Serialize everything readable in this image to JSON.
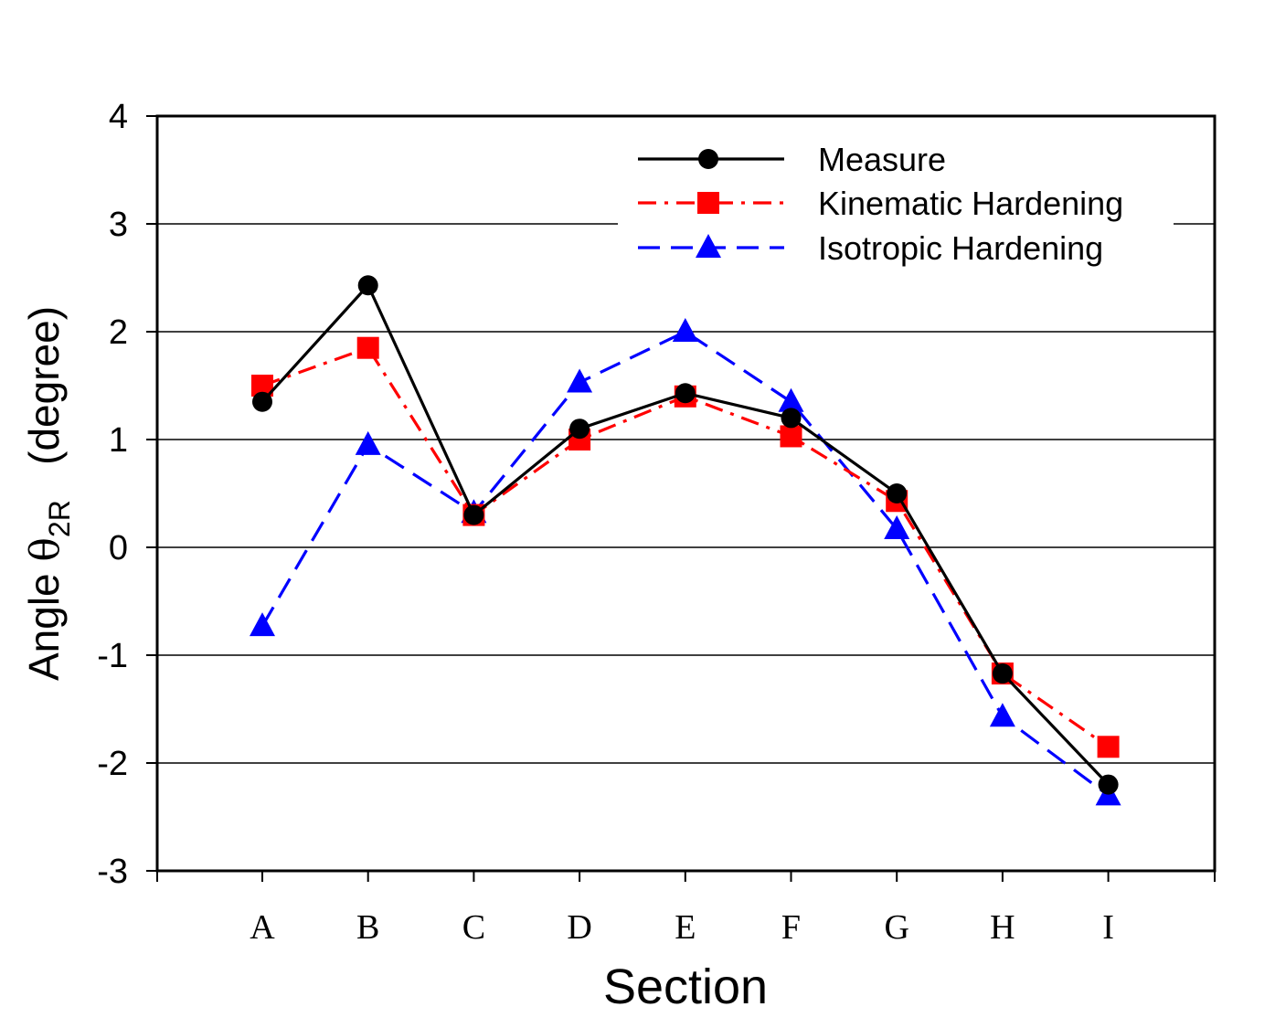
{
  "chart_data": {
    "type": "line",
    "xlabel": "Section",
    "ylabel": {
      "prefix": "Angle ",
      "symbol": "θ",
      "subscript": "2R",
      "unit": "(degree)"
    },
    "categories": [
      "A",
      "B",
      "C",
      "D",
      "E",
      "F",
      "G",
      "H",
      "I"
    ],
    "ylim": [
      -3,
      4
    ],
    "yticks": [
      "4",
      "3",
      "2",
      "1",
      "0",
      "-1",
      "-2",
      "-3"
    ],
    "grid": "horizontal",
    "legend_position": "top-right",
    "series": [
      {
        "name": "Measure",
        "color": "#000000",
        "line_style": "solid",
        "marker": "circle",
        "values": [
          1.35,
          2.43,
          0.3,
          1.1,
          1.43,
          1.2,
          0.5,
          -1.17,
          -2.2
        ]
      },
      {
        "name": "Kinematic Hardening",
        "color": "#ff0000",
        "line_style": "dash-dot",
        "marker": "square",
        "values": [
          1.5,
          1.85,
          0.3,
          1.0,
          1.4,
          1.03,
          0.43,
          -1.17,
          -1.85
        ]
      },
      {
        "name": "Isotropic Hardening",
        "color": "#0000ff",
        "line_style": "dashed",
        "marker": "triangle",
        "values": [
          -0.73,
          0.95,
          0.32,
          1.53,
          2.0,
          1.35,
          0.17,
          -1.57,
          -2.3
        ]
      }
    ]
  }
}
